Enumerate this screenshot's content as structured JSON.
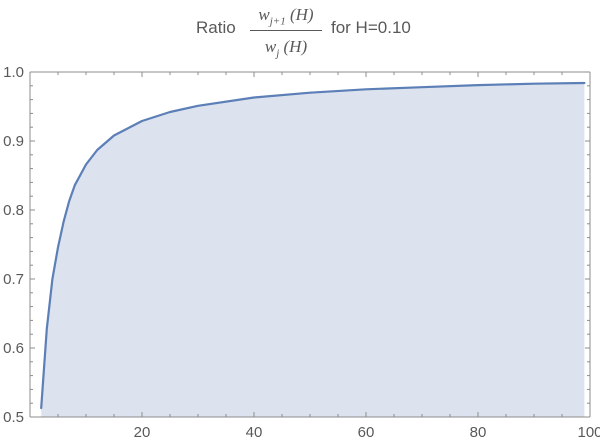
{
  "title": {
    "prefix": "Ratio",
    "numerator": "w",
    "numerator_sub": "j+1",
    "numerator_arg": "(H)",
    "denominator": "w",
    "denominator_sub": "j",
    "denominator_arg": "(H)",
    "suffix": "for H=0.10"
  },
  "colors": {
    "line": "#5B7FB6",
    "fill": "#DCE3EE",
    "axis": "#8C8C8C",
    "text": "#595959"
  },
  "chart_data": {
    "type": "area",
    "title": "Ratio w_{j+1}(H) / w_j(H) for H=0.10",
    "xlabel": "",
    "ylabel": "",
    "xlim": [
      0,
      100
    ],
    "ylim": [
      0.5,
      1.0
    ],
    "grid": false,
    "x_ticks": [
      20,
      40,
      60,
      80,
      100
    ],
    "y_ticks": [
      0.5,
      0.6,
      0.7,
      0.8,
      0.9,
      1.0
    ],
    "x_tick_labels": [
      "20",
      "40",
      "60",
      "80",
      "100"
    ],
    "y_tick_labels": [
      "0.5",
      "0.6",
      "0.7",
      "0.8",
      "0.9",
      "1.0"
    ],
    "fill_from": 0.5,
    "x": [
      2,
      3,
      4,
      5,
      6,
      7,
      8,
      10,
      12,
      15,
      20,
      25,
      30,
      40,
      50,
      60,
      70,
      80,
      90,
      99
    ],
    "y": [
      0.513,
      0.628,
      0.7,
      0.746,
      0.783,
      0.813,
      0.836,
      0.866,
      0.887,
      0.908,
      0.929,
      0.942,
      0.951,
      0.963,
      0.97,
      0.975,
      0.978,
      0.981,
      0.983,
      0.984
    ]
  }
}
